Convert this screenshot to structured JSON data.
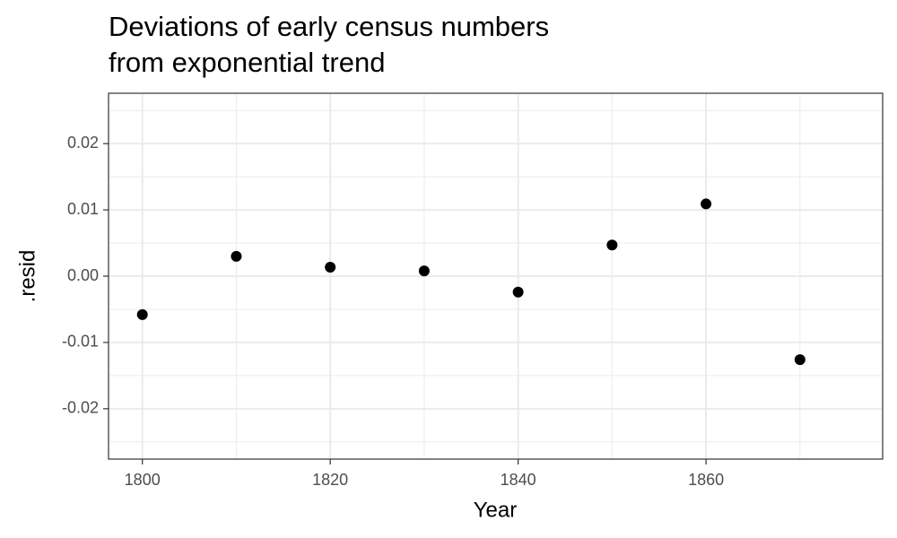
{
  "chart_data": {
    "type": "scatter",
    "title": [
      "Deviations of early census numbers",
      "from exponential trend"
    ],
    "x_label": "Year",
    "y_label": ".resid",
    "x": [
      1800,
      1810,
      1820,
      1830,
      1840,
      1850,
      1860,
      1870
    ],
    "values": [
      -0.0058,
      0.003,
      0.00135,
      0.0008,
      -0.0024,
      0.0047,
      0.0109,
      -0.0126
    ],
    "color": "#000000",
    "xlim": [
      1796.4,
      1878.8
    ],
    "xticks": [
      1800,
      1820,
      1840,
      1860
    ],
    "ylim": [
      -0.0276,
      0.0276
    ],
    "yticks": [
      -0.02,
      -0.01,
      {
        "value": 0,
        "label": "0.00"
      },
      0.01,
      0.02
    ],
    "grid": true
  }
}
